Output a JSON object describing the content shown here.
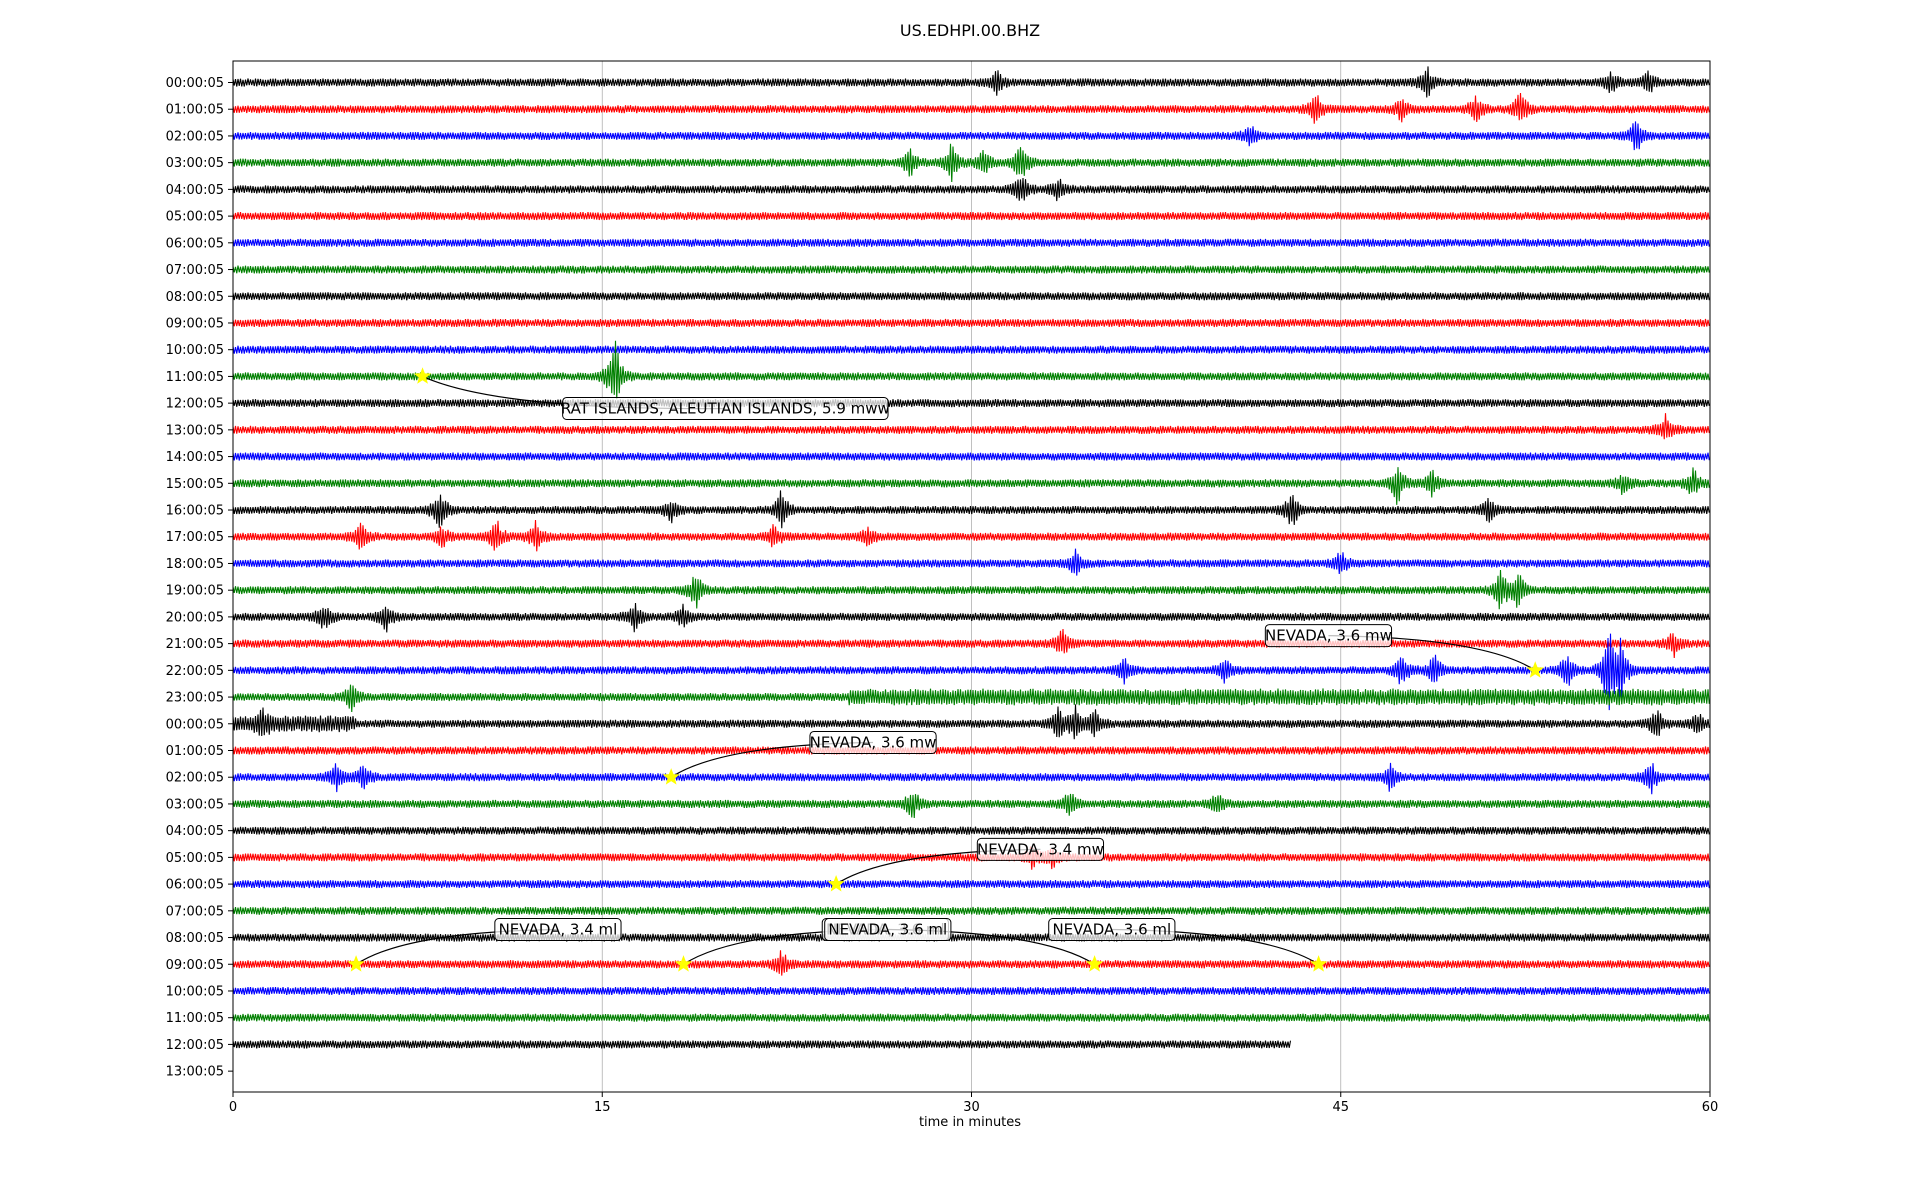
{
  "chart_data": {
    "type": "line",
    "title": "US.EDHPI.00.BHZ",
    "xlabel": "time in minutes",
    "ylabel": "",
    "xlim": [
      0,
      60
    ],
    "xticks": [
      "0",
      "15",
      "30",
      "45",
      "60"
    ],
    "x_grid": true,
    "trace_colors": [
      "#000000",
      "#ff0000",
      "#0000ff",
      "#008000"
    ],
    "row_labels": [
      "00:00:05",
      "01:00:05",
      "02:00:05",
      "03:00:05",
      "04:00:05",
      "05:00:05",
      "06:00:05",
      "07:00:05",
      "08:00:05",
      "09:00:05",
      "10:00:05",
      "11:00:05",
      "12:00:05",
      "13:00:05",
      "14:00:05",
      "15:00:05",
      "16:00:05",
      "17:00:05",
      "18:00:05",
      "19:00:05",
      "20:00:05",
      "21:00:05",
      "22:00:05",
      "23:00:05",
      "00:00:05",
      "01:00:05",
      "02:00:05",
      "03:00:05",
      "04:00:05",
      "05:00:05",
      "06:00:05",
      "07:00:05",
      "08:00:05",
      "09:00:05",
      "10:00:05",
      "11:00:05",
      "12:00:05",
      "13:00:05"
    ],
    "last_trace_end_minute": 43,
    "bursts": [
      {
        "row": 0,
        "minute": 31,
        "amp": 0.6
      },
      {
        "row": 0,
        "minute": 48.5,
        "amp": 0.7
      },
      {
        "row": 0,
        "minute": 56,
        "amp": 0.5
      },
      {
        "row": 0,
        "minute": 57.5,
        "amp": 0.5
      },
      {
        "row": 1,
        "minute": 44,
        "amp": 0.7
      },
      {
        "row": 1,
        "minute": 47.5,
        "amp": 0.6
      },
      {
        "row": 1,
        "minute": 50.5,
        "amp": 0.6
      },
      {
        "row": 1,
        "minute": 52.3,
        "amp": 0.9
      },
      {
        "row": 2,
        "minute": 41.3,
        "amp": 0.5
      },
      {
        "row": 2,
        "minute": 57,
        "amp": 0.8
      },
      {
        "row": 3,
        "minute": 27.5,
        "amp": 0.6
      },
      {
        "row": 3,
        "minute": 29.2,
        "amp": 1.0
      },
      {
        "row": 3,
        "minute": 30.5,
        "amp": 0.6
      },
      {
        "row": 3,
        "minute": 32,
        "amp": 0.9
      },
      {
        "row": 4,
        "minute": 32,
        "amp": 0.8
      },
      {
        "row": 4,
        "minute": 33.5,
        "amp": 0.6
      },
      {
        "row": 11,
        "minute": 15.5,
        "amp": 1.8
      },
      {
        "row": 13,
        "minute": 58.2,
        "amp": 0.6
      },
      {
        "row": 15,
        "minute": 47.3,
        "amp": 1.0
      },
      {
        "row": 15,
        "minute": 48.7,
        "amp": 0.6
      },
      {
        "row": 15,
        "minute": 56.5,
        "amp": 0.5
      },
      {
        "row": 15,
        "minute": 59.3,
        "amp": 0.7
      },
      {
        "row": 16,
        "minute": 8.4,
        "amp": 1.0
      },
      {
        "row": 16,
        "minute": 17.8,
        "amp": 0.5
      },
      {
        "row": 16,
        "minute": 22.3,
        "amp": 1.0
      },
      {
        "row": 16,
        "minute": 43,
        "amp": 0.9
      },
      {
        "row": 16,
        "minute": 51,
        "amp": 0.7
      },
      {
        "row": 17,
        "minute": 5.2,
        "amp": 0.6
      },
      {
        "row": 17,
        "minute": 8.5,
        "amp": 0.5
      },
      {
        "row": 17,
        "minute": 10.7,
        "amp": 0.8
      },
      {
        "row": 17,
        "minute": 12.3,
        "amp": 0.7
      },
      {
        "row": 17,
        "minute": 22,
        "amp": 0.5
      },
      {
        "row": 17,
        "minute": 25.8,
        "amp": 0.4
      },
      {
        "row": 18,
        "minute": 34.2,
        "amp": 0.6
      },
      {
        "row": 18,
        "minute": 45,
        "amp": 0.6
      },
      {
        "row": 19,
        "minute": 18.8,
        "amp": 0.8
      },
      {
        "row": 19,
        "minute": 51.5,
        "amp": 1.0
      },
      {
        "row": 19,
        "minute": 52.2,
        "amp": 0.9
      },
      {
        "row": 20,
        "minute": 3.7,
        "amp": 0.7
      },
      {
        "row": 20,
        "minute": 6.2,
        "amp": 0.7
      },
      {
        "row": 20,
        "minute": 16.3,
        "amp": 0.6
      },
      {
        "row": 20,
        "minute": 18.3,
        "amp": 0.5
      },
      {
        "row": 21,
        "minute": 33.7,
        "amp": 0.7
      },
      {
        "row": 21,
        "minute": 58.5,
        "amp": 0.6
      },
      {
        "row": 22,
        "minute": 36.2,
        "amp": 0.6
      },
      {
        "row": 22,
        "minute": 40.3,
        "amp": 0.6
      },
      {
        "row": 22,
        "minute": 47.5,
        "amp": 0.8
      },
      {
        "row": 22,
        "minute": 48.8,
        "amp": 0.7
      },
      {
        "row": 22,
        "minute": 54.2,
        "amp": 0.8
      },
      {
        "row": 22,
        "minute": 55.9,
        "amp": 2.2
      },
      {
        "row": 22,
        "minute": 56.4,
        "amp": 1.4
      },
      {
        "row": 23,
        "minute": 4.8,
        "amp": 0.6
      },
      {
        "row": 24,
        "minute": 1.2,
        "amp": 0.5
      },
      {
        "row": 24,
        "minute": 33.5,
        "amp": 0.7
      },
      {
        "row": 24,
        "minute": 34.2,
        "amp": 0.8
      },
      {
        "row": 24,
        "minute": 35,
        "amp": 0.6
      },
      {
        "row": 24,
        "minute": 57.8,
        "amp": 0.7
      },
      {
        "row": 24,
        "minute": 59.5,
        "amp": 0.5
      },
      {
        "row": 26,
        "minute": 4.2,
        "amp": 0.6
      },
      {
        "row": 26,
        "minute": 5.3,
        "amp": 0.6
      },
      {
        "row": 26,
        "minute": 47,
        "amp": 0.6
      },
      {
        "row": 26,
        "minute": 57.6,
        "amp": 0.7
      },
      {
        "row": 27,
        "minute": 27.6,
        "amp": 0.7
      },
      {
        "row": 27,
        "minute": 34,
        "amp": 0.6
      },
      {
        "row": 27,
        "minute": 40,
        "amp": 0.5
      },
      {
        "row": 29,
        "minute": 32.5,
        "amp": 0.5
      },
      {
        "row": 29,
        "minute": 33.3,
        "amp": 0.5
      },
      {
        "row": 33,
        "minute": 22.3,
        "amp": 0.6
      }
    ],
    "busy_segments": [
      {
        "row": 23,
        "from": 25,
        "to": 60
      },
      {
        "row": 24,
        "from": 0,
        "to": 5
      }
    ],
    "events": [
      {
        "row": 11,
        "minute": 7.7,
        "label": "RAT ISLANDS, ALEUTIAN ISLANDS, 5.9 mww",
        "label_row": 12.2,
        "label_minute": 20
      },
      {
        "row": 22,
        "minute": 52.9,
        "label": "NEVADA, 3.6 mw",
        "label_row": 20.7,
        "label_minute": 44.5
      },
      {
        "row": 26,
        "minute": 17.8,
        "label": "NEVADA, 3.6 mw",
        "label_row": 24.7,
        "label_minute": 26
      },
      {
        "row": 30,
        "minute": 24.5,
        "label": "NEVADA, 3.4 mw",
        "label_row": 28.7,
        "label_minute": 32.8
      },
      {
        "row": 33,
        "minute": 5,
        "label": "NEVADA, 3.4 ml",
        "label_row": 31.7,
        "label_minute": 13.2
      },
      {
        "row": 33,
        "minute": 18.3,
        "label": "NEVADA, 3.6 ml",
        "label_row": 31.7,
        "label_minute": 26.5
      },
      {
        "row": 33,
        "minute": 35,
        "label": "NEVADA, 3.6 ml",
        "label_row": 31.7,
        "label_minute": 26.6
      },
      {
        "row": 33,
        "minute": 44.1,
        "label": "NEVADA, 3.6 ml",
        "label_row": 31.7,
        "label_minute": 35.7
      }
    ]
  }
}
